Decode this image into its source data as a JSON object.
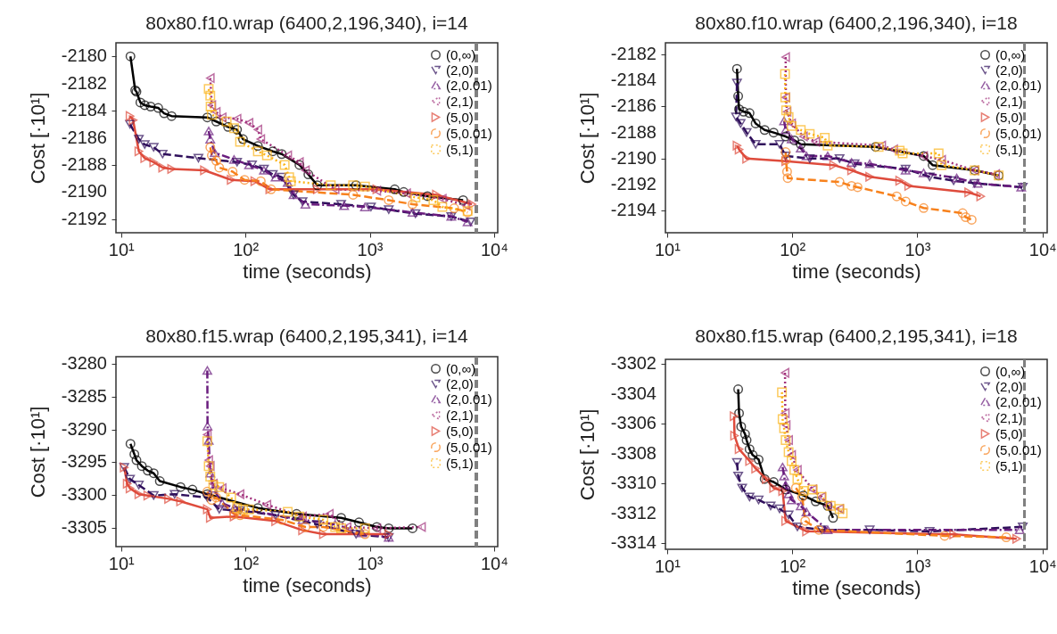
{
  "chart_data": [
    {
      "type": "line",
      "title": "80x80.f10.wrap (6400,2,196,340), i=14",
      "xlabel": "time (seconds)",
      "ylabel": "Cost [·10¹]",
      "log": "x",
      "legend": "top right",
      "xlim": [
        9.1,
        10700
      ],
      "ylim": [
        -2193,
        -2179
      ],
      "xticks": [
        {
          "value": 10,
          "label": "10¹"
        },
        {
          "value": 100,
          "label": "10²"
        },
        {
          "value": 1000,
          "label": "10³"
        },
        {
          "value": 10000,
          "label": "10⁴"
        }
      ],
      "yticks": [
        -2192,
        -2190,
        -2188,
        -2186,
        -2184,
        -2182,
        -2180
      ],
      "ref_lines": [
        {
          "axis": "x",
          "value": 7200,
          "color": "#808080",
          "line_style": "dashed"
        }
      ],
      "series": [
        {
          "name": "(0,∞)",
          "color": "#000000",
          "marker": "circle",
          "line_style": "solid",
          "x": [
            11.9,
            13.0,
            13.3,
            14.3,
            15.5,
            17.3,
            19.9,
            22.2,
            25.5,
            49.4,
            58.3,
            72.6,
            85.7,
            95.7,
            126,
            166,
            196,
            272,
            321,
            379,
            776,
            1588,
            1875,
            2911,
            5637
          ],
          "values": [
            -2180,
            -2182.5,
            -2182.6,
            -2183.4,
            -2183.6,
            -2183.7,
            -2183.8,
            -2184.2,
            -2184.4,
            -2184.5,
            -2184.8,
            -2185.2,
            -2185.4,
            -2186.1,
            -2186.6,
            -2187.0,
            -2187.2,
            -2188.0,
            -2188.7,
            -2189.5,
            -2189.5,
            -2189.8,
            -2190.0,
            -2190.3,
            -2190.6
          ]
        },
        {
          "name": "(2,0)",
          "color": "#2f0f5b",
          "marker": "triangle-down",
          "line_style": "dashed",
          "x": [
            11.8,
            13.9,
            15.5,
            18.3,
            21.6,
            41.9,
            85.7,
            113,
            141,
            166,
            196,
            244,
            288,
            589,
            1023,
            1422,
            2333,
            4529,
            6471
          ],
          "values": [
            -2185.0,
            -2186.1,
            -2186.5,
            -2186.7,
            -2187.2,
            -2187.5,
            -2187.8,
            -2188.0,
            -2188.3,
            -2188.7,
            -2188.9,
            -2190.2,
            -2190.7,
            -2190.9,
            -2191.1,
            -2191.3,
            -2191.6,
            -2191.8,
            -2192.2
          ]
        },
        {
          "name": "(2,0.01)",
          "color": "#6a1d7e",
          "marker": "triangle-up",
          "line_style": "dashdot",
          "x": [
            50.7,
            52.2,
            56.7,
            81.1,
            107,
            141,
            175,
            219,
            244,
            304,
            622,
            916,
            2208,
            4529,
            6126
          ],
          "values": [
            -2185.5,
            -2186.1,
            -2187.1,
            -2187.6,
            -2188.0,
            -2188.4,
            -2188.9,
            -2189.3,
            -2190.2,
            -2190.9,
            -2191.0,
            -2191.1,
            -2191.5,
            -2191.8,
            -2192.2
          ]
        },
        {
          "name": "(2,1)",
          "color": "#a1307b",
          "marker": "triangle-left",
          "line_style": "dotted",
          "x": [
            52.2,
            53.7,
            58.3,
            65.1,
            85.7,
            107,
            126,
            133,
            219,
            272,
            304,
            527,
            1140,
            1981,
            3834,
            5957
          ],
          "values": [
            -2181.6,
            -2183.6,
            -2184.1,
            -2184.5,
            -2184.6,
            -2184.9,
            -2185.4,
            -2186.1,
            -2187.3,
            -2187.8,
            -2188.4,
            -2189.8,
            -2189.9,
            -2190.1,
            -2190.5,
            -2191.0
          ]
        },
        {
          "name": "(5,0)",
          "color": "#de4b3c",
          "marker": "triangle-right",
          "line_style": "solid",
          "x": [
            11.8,
            12.5,
            13.9,
            15.5,
            18.3,
            21.6,
            25.5,
            46.8,
            76.8,
            119,
            157,
            379,
            1140,
            3436,
            6653
          ],
          "values": [
            -2184.4,
            -2184.7,
            -2187.0,
            -2187.5,
            -2187.8,
            -2188.2,
            -2188.3,
            -2188.4,
            -2189.1,
            -2189.2,
            -2189.8,
            -2189.8,
            -2189.8,
            -2190.2,
            -2190.9
          ]
        },
        {
          "name": "(5,0.01)",
          "color": "#f7811c",
          "marker": "circle",
          "line_style": "dashed",
          "x": [
            52.2,
            53.7,
            58.3,
            61.6,
            78.9,
            98.4,
            133,
            161,
            735,
            1422,
            2208,
            4775,
            6126
          ],
          "values": [
            -2186.7,
            -2187.3,
            -2187.7,
            -2188.2,
            -2188.5,
            -2189.1,
            -2189.2,
            -2189.8,
            -2190.2,
            -2190.6,
            -2190.9,
            -2191.2,
            -2191.5
          ]
        },
        {
          "name": "(5,1)",
          "color": "#fbb41a",
          "marker": "square",
          "line_style": "dotted",
          "x": [
            50.7,
            52.2,
            52.5,
            53.7,
            70.7,
            81.1,
            90.6,
            126,
            149,
            207,
            225,
            232,
            486,
            735,
            916,
            2333,
            3251,
            3834,
            6126
          ],
          "values": [
            -2182.4,
            -2182.9,
            -2183.7,
            -2184.3,
            -2184.8,
            -2185.3,
            -2186.3,
            -2187.0,
            -2187.3,
            -2188.0,
            -2188.9,
            -2189.2,
            -2189.5,
            -2189.5,
            -2189.6,
            -2190.4,
            -2190.6,
            -2191.1,
            -2191.4
          ]
        }
      ]
    },
    {
      "type": "line",
      "title": "80x80.f10.wrap (6400,2,196,340), i=18",
      "xlabel": "time (seconds)",
      "ylabel": "Cost [·10¹]",
      "log": "x",
      "legend": "top right",
      "xlim": [
        9.7,
        10900
      ],
      "ylim": [
        -2195.7,
        -2181.1
      ],
      "xticks": [
        {
          "value": 10,
          "label": "10¹"
        },
        {
          "value": 100,
          "label": "10²"
        },
        {
          "value": 1000,
          "label": "10³"
        },
        {
          "value": 10000,
          "label": "10⁴"
        }
      ],
      "yticks": [
        -2194,
        -2192,
        -2190,
        -2188,
        -2186,
        -2184,
        -2182
      ],
      "ref_lines": [
        {
          "axis": "x",
          "value": 7200,
          "color": "#808080",
          "line_style": "dashed"
        }
      ],
      "series": [
        {
          "name": "(0,∞)",
          "color": "#000000",
          "marker": "circle",
          "line_style": "solid",
          "x": [
            36.2,
            37.0,
            37.6,
            40.9,
            45.6,
            51.0,
            60.2,
            71.0,
            88.6,
            104,
            117,
            464,
            1122,
            1324,
            2871,
            4467
          ],
          "values": [
            -2183.1,
            -2185.2,
            -2186.2,
            -2186.4,
            -2186.5,
            -2187.3,
            -2187.8,
            -2188.0,
            -2188.3,
            -2188.6,
            -2188.9,
            -2189.1,
            -2189.8,
            -2190.5,
            -2190.9,
            -2191.3
          ]
        },
        {
          "name": "(2,0)",
          "color": "#2f0f5b",
          "marker": "triangle-down",
          "line_style": "dashed",
          "x": [
            36.2,
            35.6,
            38.7,
            43.2,
            51.0,
            79.3,
            88.6,
            138,
            239,
            315,
            806,
            1253,
            1950,
            2871,
            6950
          ],
          "values": [
            -2184.2,
            -2186.8,
            -2187.3,
            -2188.0,
            -2188.9,
            -2188.9,
            -2189.8,
            -2190.0,
            -2190.0,
            -2190.4,
            -2190.8,
            -2191.4,
            -2191.7,
            -2191.9,
            -2192.2
          ]
        },
        {
          "name": "(2,0.01)",
          "color": "#6a1d7e",
          "marker": "triangle-up",
          "line_style": "dashdot",
          "x": [
            86.1,
            88.6,
            98.9,
            117,
            130,
            192,
            298,
            416,
            806,
            1122,
            2061,
            3034,
            6761
          ],
          "values": [
            -2187.1,
            -2187.8,
            -2188.5,
            -2189.2,
            -2189.8,
            -2189.8,
            -2190.3,
            -2190.4,
            -2190.9,
            -2191.1,
            -2191.5,
            -2191.9,
            -2192.2
          ]
        },
        {
          "name": "(2,1)",
          "color": "#a1307b",
          "marker": "triangle-left",
          "line_style": "dotted",
          "x": [
            88.6,
            89.0,
            91.0,
            98.9,
            123,
            154,
            519,
            647,
            1122,
            1563,
            2871,
            4227
          ],
          "values": [
            -2182.2,
            -2185.3,
            -2186.4,
            -2187.3,
            -2188.3,
            -2188.7,
            -2189.0,
            -2189.3,
            -2189.8,
            -2190.1,
            -2190.9,
            -2191.2
          ]
        },
        {
          "name": "(5,0)",
          "color": "#de4b3c",
          "marker": "triangle-right",
          "line_style": "solid",
          "x": [
            36.2,
            37.6,
            43.2,
            88.6,
            214,
            298,
            416,
            722,
            852,
            2570,
            3206
          ],
          "values": [
            -2189.0,
            -2189.3,
            -2190.0,
            -2190.2,
            -2190.5,
            -2190.9,
            -2191.4,
            -2191.7,
            -2192.1,
            -2192.6,
            -2192.9
          ]
        },
        {
          "name": "(5,0.01)",
          "color": "#f7811c",
          "marker": "circle",
          "line_style": "dashed",
          "x": [
            88.6,
            89.0,
            91.0,
            92.0,
            239,
            298,
            333,
            684,
            806,
            1122,
            2301,
            2432,
            2716
          ],
          "values": [
            -2189.5,
            -2190.1,
            -2191.0,
            -2191.5,
            -2191.8,
            -2192.1,
            -2192.2,
            -2192.9,
            -2193.3,
            -2193.8,
            -2194.2,
            -2194.5,
            -2194.7
          ]
        },
        {
          "name": "(5,1)",
          "color": "#fbb41a",
          "marker": "square",
          "line_style": "dotted",
          "x": [
            87.6,
            88.0,
            89.5,
            93.6,
            98.9,
            117,
            138,
            182,
            192,
            491,
            722,
            763,
            1479,
            1563,
            2871,
            4467
          ],
          "values": [
            -2183.5,
            -2185.3,
            -2186.3,
            -2186.8,
            -2187.5,
            -2187.8,
            -2188.1,
            -2188.4,
            -2189.0,
            -2189.1,
            -2189.4,
            -2189.6,
            -2189.6,
            -2190.5,
            -2190.9,
            -2191.3
          ]
        }
      ]
    },
    {
      "type": "line",
      "title": "80x80.f15.wrap (6400,2,195,341), i=14",
      "xlabel": "time (seconds)",
      "ylabel": "Cost [·10¹]",
      "log": "x",
      "legend": "top right",
      "xlim": [
        9.1,
        10700
      ],
      "ylim": [
        -3307.9,
        -3278.9
      ],
      "xticks": [
        {
          "value": 10,
          "label": "10¹"
        },
        {
          "value": 100,
          "label": "10²"
        },
        {
          "value": 1000,
          "label": "10³"
        },
        {
          "value": 10000,
          "label": "10⁴"
        }
      ],
      "yticks": [
        -3305,
        -3300,
        -3295,
        -3290,
        -3285,
        -3280
      ],
      "ref_lines": [
        {
          "axis": "x",
          "value": 7200,
          "color": "#808080",
          "line_style": "dashed"
        }
      ],
      "series": [
        {
          "name": "(0,∞)",
          "color": "#000000",
          "marker": "circle",
          "line_style": "solid",
          "x": [
            11.9,
            12.8,
            13.3,
            14.7,
            16.4,
            18.3,
            20.5,
            30.1,
            37.5,
            49.4,
            126,
            258,
            589,
            820,
            1140,
            1422,
            2208
          ],
          "values": [
            -3292.2,
            -3293.8,
            -3294.7,
            -3295.6,
            -3296.3,
            -3296.7,
            -3297.9,
            -3298.8,
            -3299.2,
            -3299.9,
            -3302.0,
            -3302.9,
            -3303.5,
            -3304.2,
            -3304.9,
            -3305.1,
            -3305.1
          ]
        },
        {
          "name": "(2,0)",
          "color": "#2f0f5b",
          "marker": "triangle-down",
          "line_style": "dashed",
          "x": [
            10.6,
            11.8,
            13.9,
            18.3,
            27.0,
            49.4,
            61.6,
            90.6,
            175,
            379,
            776,
            1422
          ],
          "values": [
            -3295.8,
            -3297.6,
            -3298.5,
            -3300.1,
            -3299.9,
            -3300.4,
            -3302.2,
            -3302.4,
            -3303.1,
            -3304.5,
            -3306.0,
            -3306.5
          ]
        },
        {
          "name": "(2,0.01)",
          "color": "#6a1d7e",
          "marker": "triangle-up",
          "line_style": "dashdot",
          "x": [
            49.4,
            49.6,
            50.7,
            52.2,
            55.2,
            65.1,
            81.1,
            288,
            527,
            867,
            1422
          ],
          "values": [
            -3281.0,
            -3289.5,
            -3291.7,
            -3296.7,
            -3299.0,
            -3301.3,
            -3302.0,
            -3303.8,
            -3304.5,
            -3305.8,
            -3306.5
          ]
        },
        {
          "name": "(2,1)",
          "color": "#a1307b",
          "marker": "triangle-left",
          "line_style": "dotted",
          "x": [
            49.4,
            50.7,
            52.2,
            55.2,
            65.1,
            90.6,
            149,
            288,
            473,
            658,
            1140,
            2608
          ],
          "values": [
            -3290.8,
            -3294.7,
            -3295.6,
            -3298.3,
            -3299.0,
            -3299.9,
            -3301.5,
            -3303.3,
            -3302.9,
            -3304.9,
            -3305.1,
            -3304.9
          ]
        },
        {
          "name": "(5,0)",
          "color": "#de4b3c",
          "marker": "triangle-right",
          "line_style": "solid",
          "x": [
            10.6,
            11.2,
            11.8,
            13.9,
            16.4,
            24.1,
            30.1,
            49.4,
            52.2,
            81.1,
            175,
            288,
            424,
            1422
          ],
          "values": [
            -3295.8,
            -3298.3,
            -3299.0,
            -3299.9,
            -3300.1,
            -3300.6,
            -3301.0,
            -3302.2,
            -3303.5,
            -3303.3,
            -3304.0,
            -3305.4,
            -3306.0,
            -3306.0
          ]
        },
        {
          "name": "(5,0.01)",
          "color": "#f7811c",
          "marker": "circle",
          "line_style": "dashed",
          "x": [
            49.4,
            53.7,
            58.3,
            81.1,
            90.6,
            196,
            304,
            424,
            916
          ],
          "values": [
            -3299.5,
            -3300.8,
            -3300.4,
            -3302.9,
            -3303.1,
            -3303.8,
            -3304.9,
            -3304.9,
            -3306.0
          ]
        },
        {
          "name": "(5,1)",
          "color": "#fbb41a",
          "marker": "square",
          "line_style": "dotted",
          "x": [
            49.4,
            50.7,
            52.2,
            55.2,
            61.6,
            76.8,
            85.7,
            95.7,
            107,
            219,
            272,
            424,
            527,
            589,
            916
          ],
          "values": [
            -3291.8,
            -3295.6,
            -3297.2,
            -3298.5,
            -3298.8,
            -3300.4,
            -3302.0,
            -3302.2,
            -3302.2,
            -3302.6,
            -3303.3,
            -3303.8,
            -3304.9,
            -3305.1,
            -3305.1
          ]
        }
      ]
    },
    {
      "type": "line",
      "title": "80x80.f15.wrap (6400,2,195,341), i=18",
      "xlabel": "time (seconds)",
      "ylabel": "Cost [·10¹]",
      "log": "x",
      "legend": "top right",
      "xlim": [
        9.7,
        10900
      ],
      "ylim": [
        -3314.4,
        -3301.7
      ],
      "xticks": [
        {
          "value": 10,
          "label": "10¹"
        },
        {
          "value": 100,
          "label": "10²"
        },
        {
          "value": 1000,
          "label": "10³"
        },
        {
          "value": 10000,
          "label": "10⁴"
        }
      ],
      "yticks": [
        -3314,
        -3312,
        -3310,
        -3308,
        -3306,
        -3304,
        -3302
      ],
      "ref_lines": [
        {
          "axis": "x",
          "value": 7200,
          "color": "#808080",
          "line_style": "dashed"
        }
      ],
      "series": [
        {
          "name": "(0,∞)",
          "color": "#000000",
          "marker": "circle",
          "line_style": "solid",
          "x": [
            37.0,
            37.6,
            39.1,
            42.0,
            43.2,
            45.6,
            48.3,
            53.9,
            60.2,
            71.0,
            88.6,
            123,
            154,
            192,
            212
          ],
          "values": [
            -3303.7,
            -3305.3,
            -3306.2,
            -3306.7,
            -3307.1,
            -3307.7,
            -3308.1,
            -3308.4,
            -3309.7,
            -3309.9,
            -3310.4,
            -3310.8,
            -3311.2,
            -3311.5,
            -3312.3
          ]
        },
        {
          "name": "(2,0)",
          "color": "#2f0f5b",
          "marker": "triangle-down",
          "line_style": "dashed",
          "x": [
            36.2,
            37.0,
            39.8,
            45.6,
            53.9,
            67.2,
            79.3,
            93.6,
            110,
            172,
            416,
            1253,
            6950
          ],
          "values": [
            -3308.6,
            -3309.5,
            -3310.3,
            -3310.9,
            -3311.1,
            -3311.5,
            -3311.7,
            -3312.1,
            -3312.9,
            -3313.1,
            -3313.1,
            -3313.2,
            -3312.9
          ]
        },
        {
          "name": "(2,0.01)",
          "color": "#6a1d7e",
          "marker": "triangle-up",
          "line_style": "dashdot",
          "x": [
            83.8,
            86.1,
            88.6,
            93.6,
            98.9,
            117,
            130,
            192,
            6577
          ],
          "values": [
            -3308.9,
            -3309.5,
            -3310.1,
            -3310.7,
            -3311.1,
            -3311.5,
            -3311.9,
            -3313.1,
            -3313.1
          ]
        },
        {
          "name": "(2,1)",
          "color": "#a1307b",
          "marker": "triangle-left",
          "line_style": "dotted",
          "x": [
            87.6,
            88.0,
            89.5,
            93.6,
            98.9,
            110,
            146,
            172,
            192,
            239
          ],
          "values": [
            -3302.6,
            -3305.3,
            -3306.1,
            -3307.1,
            -3308.1,
            -3309.1,
            -3310.4,
            -3310.9,
            -3311.5,
            -3311.7
          ]
        },
        {
          "name": "(5,0)",
          "color": "#de4b3c",
          "marker": "triangle-right",
          "line_style": "solid",
          "x": [
            34.3,
            34.6,
            37.6,
            45.6,
            51.0,
            61.9,
            71.0,
            83.8,
            88.6,
            130,
            1950,
            6218
          ],
          "values": [
            -3305.5,
            -3306.8,
            -3307.7,
            -3308.5,
            -3309.0,
            -3309.7,
            -3310.3,
            -3310.5,
            -3312.5,
            -3313.2,
            -3313.4,
            -3313.7
          ]
        },
        {
          "name": "(5,0.01)",
          "color": "#f7811c",
          "marker": "circle",
          "line_style": "dashed",
          "x": [
            107,
            120,
            127,
            163,
            1652,
            5129
          ],
          "values": [
            -3310.3,
            -3310.9,
            -3312.5,
            -3313.1,
            -3313.5,
            -3313.6
          ]
        },
        {
          "name": "(5,1)",
          "color": "#fbb41a",
          "marker": "square",
          "line_style": "dotted",
          "x": [
            82.8,
            83.8,
            86.1,
            88.6,
            93.6,
            98.9,
            104,
            110,
            123,
            146,
            172,
            203,
            239,
            253
          ],
          "values": [
            -3303.9,
            -3305.7,
            -3306.3,
            -3307.1,
            -3307.9,
            -3308.5,
            -3309.1,
            -3309.7,
            -3310.5,
            -3310.4,
            -3310.9,
            -3311.5,
            -3311.7,
            -3312.0
          ]
        }
      ]
    }
  ]
}
